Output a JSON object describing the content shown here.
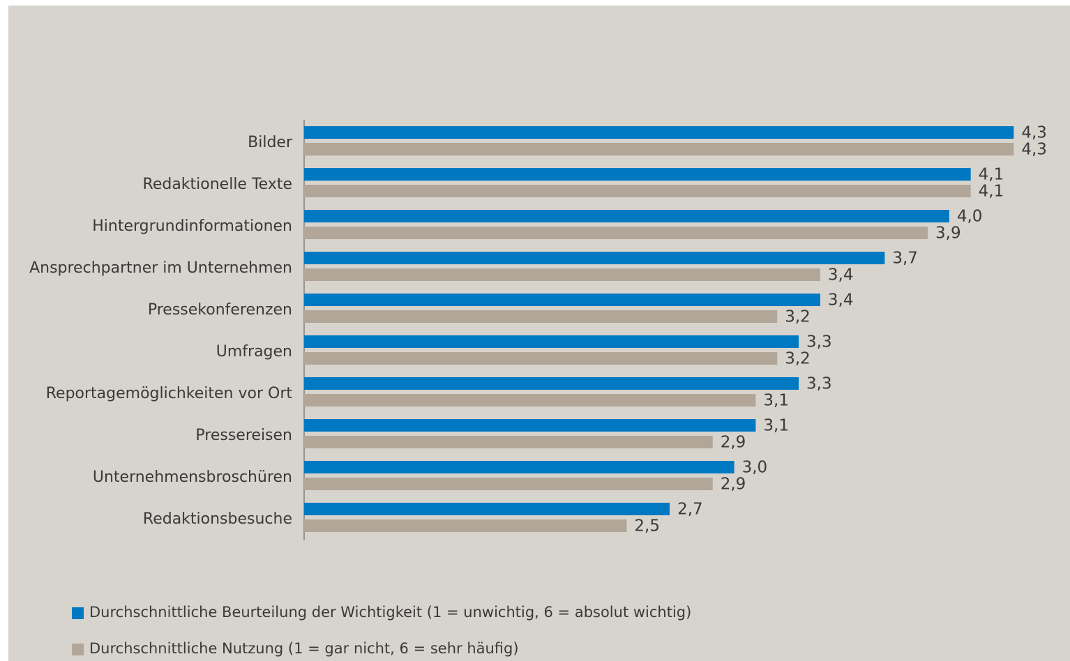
{
  "chart_data": {
    "type": "hbar",
    "categories": [
      "Bilder",
      "Redaktionelle Texte",
      "Hintergrundinformationen",
      "Ansprechpartner im Unternehmen",
      "Pressekonferenzen",
      "Umfragen",
      "Reportagemöglichkeiten vor Ort",
      "Pressereisen",
      "Unternehmensbroschüren",
      "Redaktionsbesuche"
    ],
    "series": [
      {
        "name": "Durchschnittliche Beurteilung der Wichtigkeit (1 = unwichtig, 6 = absolut wichtig)",
        "color": "#0079c2",
        "values": [
          4.3,
          4.1,
          4.0,
          3.7,
          3.4,
          3.3,
          3.3,
          3.1,
          3.0,
          2.7
        ],
        "value_labels": [
          "4,3",
          "4,1",
          "4,0",
          "3,7",
          "3,4",
          "3,3",
          "3,3",
          "3,1",
          "3,0",
          "2,7"
        ]
      },
      {
        "name": "Durchschnittliche Nutzung (1 = gar nicht, 6 = sehr häufig)",
        "color": "#b1a698",
        "values": [
          4.3,
          4.1,
          3.9,
          3.4,
          3.2,
          3.2,
          3.1,
          2.9,
          2.9,
          2.5
        ],
        "value_labels": [
          "4,3",
          "4,1",
          "3,9",
          "3,4",
          "3,2",
          "3,2",
          "3,1",
          "2,9",
          "2,9",
          "2,5"
        ]
      }
    ],
    "xlim": [
      1,
      4.5
    ],
    "legend": "bottom-left"
  }
}
